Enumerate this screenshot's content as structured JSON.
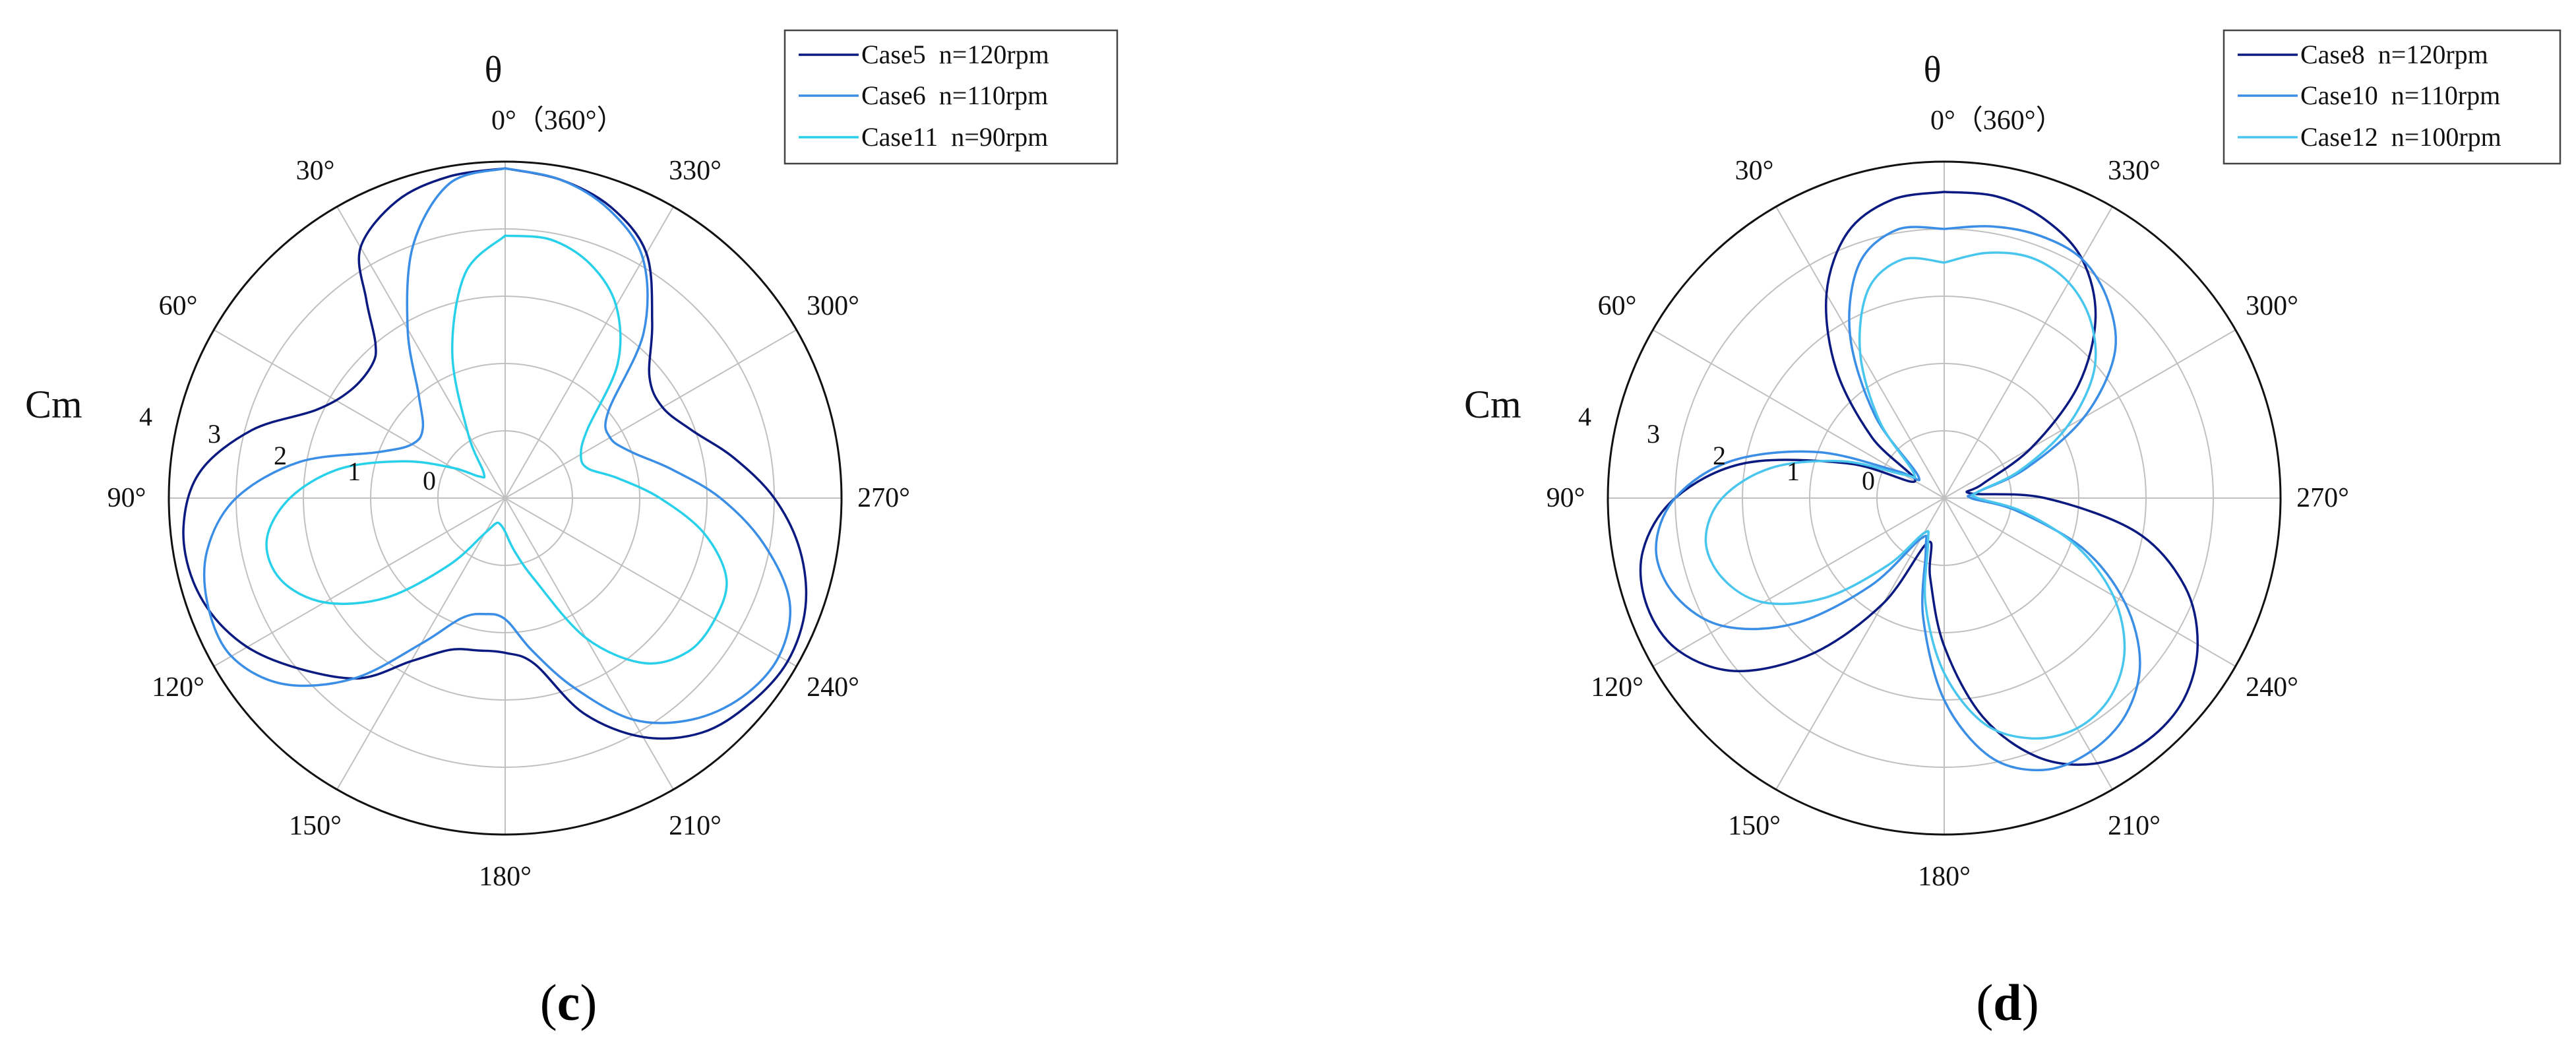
{
  "colors": {
    "series_dark": "#0a1a80",
    "series_mid": "#3a8ee6",
    "series_cyan": "#28d0ea",
    "series_light": "#48c6ee",
    "grid": "#c0c0c0",
    "outer_circle": "#111111",
    "legend_border": "#444444"
  },
  "chart_data": [
    {
      "type": "polar-line",
      "panel_label": {
        "open": "(",
        "letter": "c",
        "close": ")"
      },
      "theta_title": "θ",
      "r_title": "Cm",
      "angle_direction": "counterclockwise",
      "zero_direction": "top",
      "angle_tick_labels": [
        "0°（360°）",
        "30°",
        "60°",
        "90°",
        "120°",
        "150°",
        "180°",
        "210°",
        "240°",
        "270°",
        "300°",
        "330°"
      ],
      "r_tick_labels": [
        "0",
        "1",
        "2",
        "3",
        "4"
      ],
      "r_origin_value": -1,
      "r_max_value": 4,
      "rlim": [
        -1,
        4
      ],
      "grid": true,
      "legend_position": "top-right",
      "series": [
        {
          "name": "Case5  n=120rpm",
          "color_key": "series_dark",
          "width": 3.5,
          "points": [
            [
              0,
              3.9
            ],
            [
              10,
              3.85
            ],
            [
              20,
              3.7
            ],
            [
              30,
              3.3
            ],
            [
              35,
              2.6
            ],
            [
              40,
              2.0
            ],
            [
              45,
              1.8
            ],
            [
              55,
              1.8
            ],
            [
              65,
              2.1
            ],
            [
              75,
              2.9
            ],
            [
              85,
              3.55
            ],
            [
              95,
              3.8
            ],
            [
              105,
              3.8
            ],
            [
              115,
              3.6
            ],
            [
              125,
              3.2
            ],
            [
              140,
              2.5
            ],
            [
              150,
              1.8
            ],
            [
              160,
              1.4
            ],
            [
              170,
              1.3
            ],
            [
              180,
              1.3
            ],
            [
              190,
              1.5
            ],
            [
              200,
              2.4
            ],
            [
              210,
              3.1
            ],
            [
              220,
              3.55
            ],
            [
              230,
              3.75
            ],
            [
              240,
              3.85
            ],
            [
              250,
              3.75
            ],
            [
              260,
              3.45
            ],
            [
              270,
              3.0
            ],
            [
              280,
              2.45
            ],
            [
              290,
              1.95
            ],
            [
              300,
              1.7
            ],
            [
              310,
              1.8
            ],
            [
              320,
              2.4
            ],
            [
              330,
              3.2
            ],
            [
              340,
              3.6
            ],
            [
              350,
              3.8
            ],
            [
              360,
              3.9
            ]
          ]
        },
        {
          "name": "Case6  n=110rpm",
          "color_key": "series_mid",
          "width": 3.5,
          "points": [
            [
              0,
              3.9
            ],
            [
              10,
              3.75
            ],
            [
              20,
              3.0
            ],
            [
              30,
              1.9
            ],
            [
              40,
              1.0
            ],
            [
              50,
              0.6
            ],
            [
              60,
              0.6
            ],
            [
              70,
              1.0
            ],
            [
              80,
              2.1
            ],
            [
              90,
              3.0
            ],
            [
              100,
              3.5
            ],
            [
              110,
              3.7
            ],
            [
              120,
              3.7
            ],
            [
              130,
              3.3
            ],
            [
              140,
              2.5
            ],
            [
              150,
              1.5
            ],
            [
              160,
              0.9
            ],
            [
              170,
              0.75
            ],
            [
              180,
              0.8
            ],
            [
              190,
              1.3
            ],
            [
              200,
              2.0
            ],
            [
              210,
              2.8
            ],
            [
              220,
              3.3
            ],
            [
              230,
              3.6
            ],
            [
              240,
              3.7
            ],
            [
              250,
              3.5
            ],
            [
              260,
              2.9
            ],
            [
              270,
              2.2
            ],
            [
              280,
              1.5
            ],
            [
              290,
              1.0
            ],
            [
              300,
              0.8
            ],
            [
              310,
              1.0
            ],
            [
              320,
              2.2
            ],
            [
              330,
              3.1
            ],
            [
              340,
              3.55
            ],
            [
              350,
              3.8
            ],
            [
              360,
              3.9
            ]
          ]
        },
        {
          "name": "Case11  n=90rpm",
          "color_key": "series_cyan",
          "width": 3.5,
          "points": [
            [
              0,
              2.9
            ],
            [
              10,
              2.4
            ],
            [
              20,
              1.3
            ],
            [
              30,
              0.1
            ],
            [
              40,
              -0.5
            ],
            [
              50,
              -0.5
            ],
            [
              60,
              -0.1
            ],
            [
              70,
              0.6
            ],
            [
              80,
              1.5
            ],
            [
              90,
              2.2
            ],
            [
              100,
              2.6
            ],
            [
              110,
              2.55
            ],
            [
              120,
              2.1
            ],
            [
              130,
              1.3
            ],
            [
              140,
              0.3
            ],
            [
              150,
              -0.4
            ],
            [
              160,
              -0.6
            ],
            [
              170,
              -0.6
            ],
            [
              180,
              -0.5
            ],
            [
              190,
              -0.2
            ],
            [
              200,
              0.3
            ],
            [
              210,
              1.4
            ],
            [
              220,
              2.2
            ],
            [
              230,
              2.55
            ],
            [
              240,
              2.6
            ],
            [
              250,
              2.5
            ],
            [
              260,
              2.0
            ],
            [
              270,
              1.3
            ],
            [
              280,
              0.7
            ],
            [
              290,
              0.3
            ],
            [
              300,
              0.3
            ],
            [
              310,
              0.6
            ],
            [
              320,
              1.6
            ],
            [
              330,
              2.3
            ],
            [
              340,
              2.7
            ],
            [
              350,
              2.9
            ],
            [
              360,
              2.9
            ]
          ]
        }
      ]
    },
    {
      "type": "polar-line",
      "panel_label": {
        "open": "(",
        "letter": "d",
        "close": ")"
      },
      "theta_title": "θ",
      "r_title": "Cm",
      "angle_direction": "counterclockwise",
      "zero_direction": "top",
      "angle_tick_labels": [
        "0°（360°）",
        "30°",
        "60°",
        "90°",
        "120°",
        "150°",
        "180°",
        "210°",
        "240°",
        "270°",
        "300°",
        "330°"
      ],
      "r_tick_labels": [
        "0",
        "1",
        "2",
        "3",
        "4"
      ],
      "r_origin_value": -1,
      "r_max_value": 4,
      "rlim": [
        -1,
        4
      ],
      "grid": true,
      "legend_position": "top-right",
      "series": [
        {
          "name": "Case8  n=120rpm",
          "color_key": "series_dark",
          "width": 3.5,
          "points": [
            [
              0,
              3.55
            ],
            [
              10,
              3.5
            ],
            [
              20,
              3.2
            ],
            [
              30,
              2.5
            ],
            [
              40,
              1.5
            ],
            [
              50,
              0.4
            ],
            [
              60,
              -0.5
            ],
            [
              70,
              0.5
            ],
            [
              80,
              2.0
            ],
            [
              90,
              3.0
            ],
            [
              100,
              3.55
            ],
            [
              110,
              3.7
            ],
            [
              120,
              3.55
            ],
            [
              130,
              3.0
            ],
            [
              140,
              2.0
            ],
            [
              150,
              0.8
            ],
            [
              160,
              -0.3
            ],
            [
              170,
              0.2
            ],
            [
              180,
              1.2
            ],
            [
              190,
              2.3
            ],
            [
              200,
              3.1
            ],
            [
              210,
              3.55
            ],
            [
              220,
              3.7
            ],
            [
              230,
              3.65
            ],
            [
              240,
              3.35
            ],
            [
              250,
              2.8
            ],
            [
              260,
              1.9
            ],
            [
              270,
              0.5
            ],
            [
              280,
              -0.6
            ],
            [
              290,
              -0.4
            ],
            [
              300,
              0.5
            ],
            [
              310,
              1.6
            ],
            [
              320,
              2.5
            ],
            [
              330,
              3.1
            ],
            [
              340,
              3.4
            ],
            [
              350,
              3.55
            ],
            [
              360,
              3.55
            ]
          ]
        },
        {
          "name": "Case10  n=110rpm",
          "color_key": "series_mid",
          "width": 3.5,
          "points": [
            [
              0,
              3.0
            ],
            [
              10,
              3.05
            ],
            [
              20,
              2.7
            ],
            [
              30,
              1.8
            ],
            [
              40,
              0.6
            ],
            [
              50,
              -0.5
            ],
            [
              60,
              -0.2
            ],
            [
              70,
              1.0
            ],
            [
              80,
              2.2
            ],
            [
              90,
              3.0
            ],
            [
              100,
              3.35
            ],
            [
              110,
              3.25
            ],
            [
              120,
              2.8
            ],
            [
              130,
              1.9
            ],
            [
              140,
              0.7
            ],
            [
              150,
              -0.3
            ],
            [
              160,
              -0.2
            ],
            [
              170,
              0.8
            ],
            [
              180,
              2.0
            ],
            [
              190,
              2.9
            ],
            [
              200,
              3.3
            ],
            [
              210,
              3.35
            ],
            [
              220,
              3.2
            ],
            [
              230,
              2.8
            ],
            [
              240,
              2.1
            ],
            [
              250,
              1.2
            ],
            [
              260,
              0.1
            ],
            [
              270,
              -0.6
            ],
            [
              280,
              -0.5
            ],
            [
              290,
              0.3
            ],
            [
              300,
              1.4
            ],
            [
              310,
              2.3
            ],
            [
              320,
              2.8
            ],
            [
              330,
              3.1
            ],
            [
              340,
              3.15
            ],
            [
              350,
              3.1
            ],
            [
              360,
              3.0
            ]
          ]
        },
        {
          "name": "Case12  n=100rpm",
          "color_key": "series_light",
          "width": 3.5,
          "points": [
            [
              0,
              2.5
            ],
            [
              10,
              2.6
            ],
            [
              20,
              2.3
            ],
            [
              30,
              1.5
            ],
            [
              40,
              0.5
            ],
            [
              50,
              -0.4
            ],
            [
              60,
              -0.3
            ],
            [
              70,
              0.6
            ],
            [
              80,
              1.6
            ],
            [
              90,
              2.3
            ],
            [
              100,
              2.6
            ],
            [
              110,
              2.5
            ],
            [
              120,
              2.1
            ],
            [
              130,
              1.3
            ],
            [
              140,
              0.3
            ],
            [
              150,
              -0.4
            ],
            [
              160,
              -0.3
            ],
            [
              170,
              0.6
            ],
            [
              180,
              1.6
            ],
            [
              190,
              2.4
            ],
            [
              200,
              2.8
            ],
            [
              210,
              2.95
            ],
            [
              220,
              2.85
            ],
            [
              230,
              2.5
            ],
            [
              240,
              1.9
            ],
            [
              250,
              1.1
            ],
            [
              260,
              0.2
            ],
            [
              270,
              -0.5
            ],
            [
              280,
              -0.5
            ],
            [
              290,
              0.2
            ],
            [
              300,
              1.1
            ],
            [
              310,
              1.9
            ],
            [
              320,
              2.4
            ],
            [
              330,
              2.7
            ],
            [
              340,
              2.8
            ],
            [
              350,
              2.7
            ],
            [
              360,
              2.5
            ]
          ]
        }
      ]
    }
  ]
}
